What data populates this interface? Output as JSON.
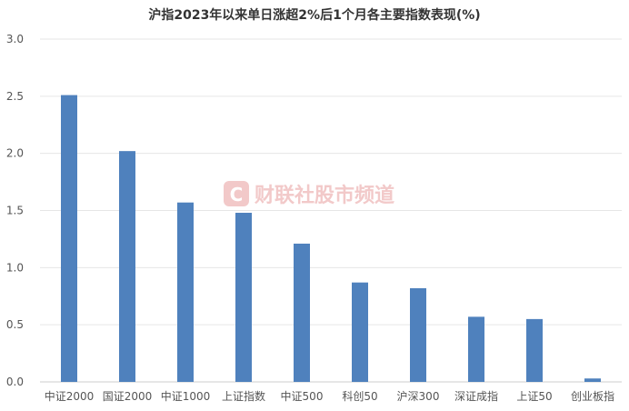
{
  "title": "沪指2023年以来单日涨超2%后1个月各主要指数表现(%)",
  "watermark": {
    "text": "财联社股市频道",
    "logo_letter": "C",
    "color": "#e8a9a9"
  },
  "chart_data": {
    "type": "bar",
    "title": "沪指2023年以来单日涨超2%后1个月各主要指数表现(%)",
    "categories": [
      "中证2000",
      "国证2000",
      "中证1000",
      "上证指数",
      "中证500",
      "科创50",
      "沪深300",
      "深证成指",
      "上证50",
      "创业板指"
    ],
    "values": [
      2.51,
      2.02,
      1.57,
      1.48,
      1.21,
      0.87,
      0.82,
      0.57,
      0.55,
      0.03
    ],
    "ylim": [
      0,
      3.0
    ],
    "yticks": [
      "0.0",
      "0.5",
      "1.0",
      "1.5",
      "2.0",
      "2.5",
      "3.0"
    ],
    "xlabel": "",
    "ylabel": "",
    "grid": true,
    "bar_color": "#4f81bd"
  }
}
